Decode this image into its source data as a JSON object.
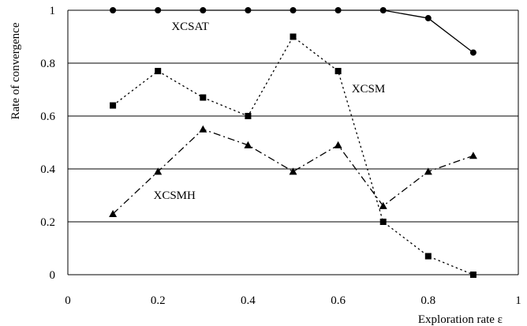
{
  "chart_data": {
    "type": "line",
    "xlabel": "Exploration rate ε",
    "ylabel": "Rate of convergence",
    "xlim": [
      0,
      1
    ],
    "ylim": [
      0,
      1
    ],
    "x_ticks": [
      "0",
      "0.2",
      "0.4",
      "0.6",
      "0.8",
      "1"
    ],
    "y_ticks": [
      "0",
      "0.2",
      "0.4",
      "0.6",
      "0.8",
      "1"
    ],
    "grid": "horizontal",
    "series": [
      {
        "name": "XCSAT",
        "marker": "circle",
        "line_style": "solid",
        "x": [
          0.1,
          0.2,
          0.3,
          0.4,
          0.5,
          0.6,
          0.7,
          0.8,
          0.9
        ],
        "y": [
          1.0,
          1.0,
          1.0,
          1.0,
          1.0,
          1.0,
          1.0,
          0.97,
          0.84
        ]
      },
      {
        "name": "XCSM",
        "marker": "square",
        "line_style": "dotted",
        "x": [
          0.1,
          0.2,
          0.3,
          0.4,
          0.5,
          0.6,
          0.7,
          0.8,
          0.9
        ],
        "y": [
          0.64,
          0.77,
          0.67,
          0.6,
          0.9,
          0.77,
          0.2,
          0.07,
          0.0
        ]
      },
      {
        "name": "XCSMH",
        "marker": "triangle",
        "line_style": "dash-dot",
        "x": [
          0.1,
          0.2,
          0.3,
          0.4,
          0.5,
          0.6,
          0.7,
          0.8,
          0.9
        ],
        "y": [
          0.23,
          0.39,
          0.55,
          0.49,
          0.39,
          0.49,
          0.26,
          0.39,
          0.45
        ]
      }
    ]
  }
}
